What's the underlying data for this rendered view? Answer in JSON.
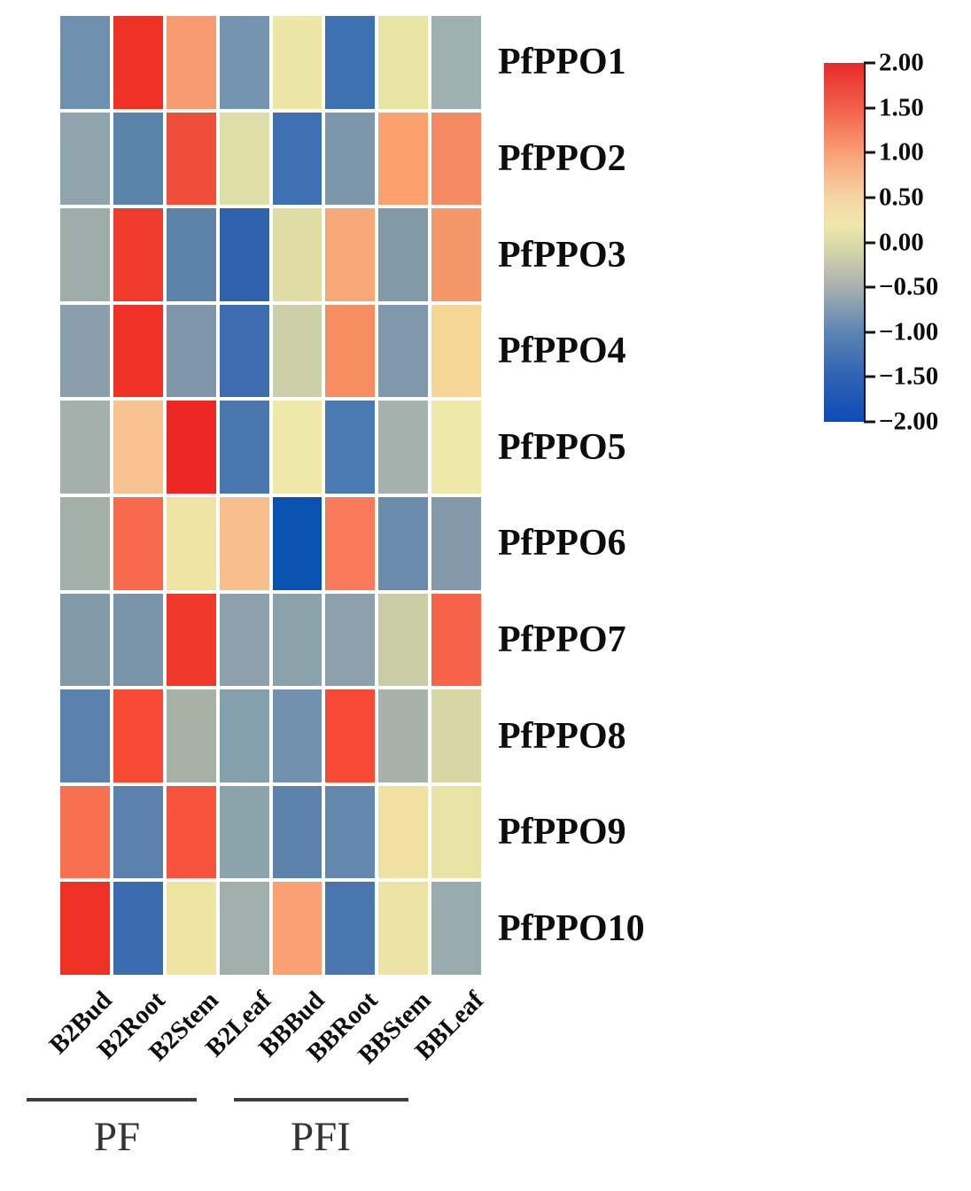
{
  "chart_data": {
    "type": "heatmap",
    "title": "",
    "rows": [
      "PfPPO1",
      "PfPPO2",
      "PfPPO3",
      "PfPPO4",
      "PfPPO5",
      "PfPPO6",
      "PfPPO7",
      "PfPPO8",
      "PfPPO9",
      "PfPPO10"
    ],
    "columns": [
      "B2Bud",
      "B2Root",
      "B2Stem",
      "B2Leaf",
      "BBBud",
      "BBRoot",
      "BBStem",
      "BBLeaf"
    ],
    "column_groups": [
      {
        "label": "PF",
        "columns": [
          "B2Bud",
          "B2Root",
          "B2Stem",
          "B2Leaf"
        ]
      },
      {
        "label": "PFI",
        "columns": [
          "BBBud",
          "BBRoot",
          "BBStem",
          "BBLeaf"
        ]
      }
    ],
    "values": [
      [
        -0.9,
        1.9,
        1.0,
        -0.85,
        0.2,
        -1.4,
        0.2,
        -0.55
      ],
      [
        -0.65,
        -1.05,
        1.6,
        0.05,
        -1.4,
        -0.8,
        1.0,
        1.15
      ],
      [
        -0.5,
        1.75,
        -1.05,
        -1.55,
        0.05,
        0.9,
        -0.7,
        1.05
      ],
      [
        -0.65,
        1.85,
        -0.75,
        -1.45,
        -0.15,
        1.1,
        -0.75,
        0.45
      ],
      [
        -0.5,
        0.65,
        1.95,
        -1.25,
        0.25,
        -1.25,
        -0.5,
        0.25
      ],
      [
        -0.5,
        1.35,
        0.25,
        0.7,
        -1.95,
        1.2,
        -0.95,
        -0.7
      ],
      [
        -0.7,
        -0.8,
        1.75,
        -0.6,
        -0.6,
        -0.6,
        -0.1,
        1.4
      ],
      [
        -1.05,
        1.6,
        -0.45,
        -0.65,
        -0.9,
        1.6,
        -0.45,
        0.0
      ],
      [
        1.3,
        -1.05,
        1.55,
        -0.6,
        -1.05,
        -1.0,
        0.35,
        0.2
      ],
      [
        1.85,
        -1.45,
        0.25,
        -0.5,
        0.95,
        -1.25,
        0.25,
        -0.55
      ]
    ],
    "cell_colors": [
      [
        "#6e8fae",
        "#ee3124",
        "#f89b72",
        "#7494b0",
        "#ede7a7",
        "#3c70b0",
        "#e8e5a4",
        "#9fb0b0"
      ],
      [
        "#8fa4ac",
        "#5b84ab",
        "#f04e38",
        "#dedea8",
        "#3d6fb2",
        "#7c97ab",
        "#f9a06e",
        "#f58a62"
      ],
      [
        "#9fadaa",
        "#f03a2c",
        "#5e83ab",
        "#2f63ad",
        "#dfdda3",
        "#f8a876",
        "#8299a8",
        "#f6976a"
      ],
      [
        "#8a9fab",
        "#ee3124",
        "#7f97a9",
        "#3d6db0",
        "#ccd0a8",
        "#f78e62",
        "#7f98ab",
        "#f6d694"
      ],
      [
        "#a3b0ab",
        "#f8c391",
        "#ec2724",
        "#4a77ae",
        "#eee8a9",
        "#4a7ab2",
        "#a5b2ad",
        "#eee8a9"
      ],
      [
        "#a3b0a9",
        "#f76a4d",
        "#eee5a5",
        "#f8bf8c",
        "#0a52b0",
        "#f87a5a",
        "#6b8bac",
        "#8399aa"
      ],
      [
        "#8299aa",
        "#7a95aa",
        "#f0392b",
        "#8ba0ab",
        "#8ba2ab",
        "#8ba0ab",
        "#c9cda5",
        "#f7644a"
      ],
      [
        "#5b82ae",
        "#f64a37",
        "#a7b2a7",
        "#84a0ac",
        "#7191ae",
        "#f64936",
        "#a7b2aa",
        "#d6d7a4"
      ],
      [
        "#f7704f",
        "#5a81ad",
        "#f6523c",
        "#8ba3ab",
        "#5d83ad",
        "#6488ad",
        "#f0e0a2",
        "#e7e3a5"
      ],
      [
        "#ee3124",
        "#3c6cb0",
        "#eee5a3",
        "#a0afac",
        "#f9a172",
        "#4a76b0",
        "#ece4a4",
        "#9aabae"
      ]
    ],
    "colorbar": {
      "min": -2.0,
      "max": 2.0,
      "tick_values": [
        2.0,
        1.5,
        1.0,
        0.5,
        0.0,
        -0.5,
        -1.0,
        -1.5,
        -2.0
      ],
      "tick_labels": [
        "2.00",
        "1.50",
        "1.00",
        "0.50",
        "0.00",
        "−0.50",
        "−1.00",
        "−1.50",
        "−2.00"
      ],
      "gradient_stops": [
        {
          "pos": "0%",
          "color": "#e82a29"
        },
        {
          "pos": "12.5%",
          "color": "#f1604a"
        },
        {
          "pos": "25%",
          "color": "#f89f75"
        },
        {
          "pos": "37.5%",
          "color": "#f6d5a4"
        },
        {
          "pos": "45%",
          "color": "#efe7ab"
        },
        {
          "pos": "50%",
          "color": "#dedcaa"
        },
        {
          "pos": "62.5%",
          "color": "#a8b0af"
        },
        {
          "pos": "75%",
          "color": "#5c84b4"
        },
        {
          "pos": "87.5%",
          "color": "#2e62b4"
        },
        {
          "pos": "100%",
          "color": "#0c4cb6"
        }
      ],
      "position": "top-right"
    },
    "layout": {
      "grid": "off",
      "row_labels_position": "right",
      "column_labels_rotation_deg": 45
    }
  }
}
